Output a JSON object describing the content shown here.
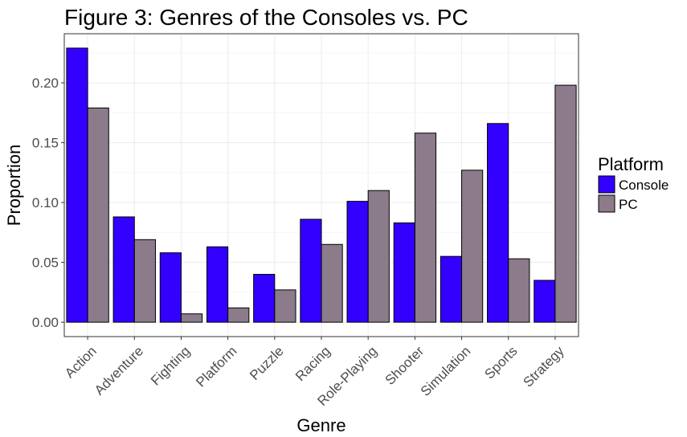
{
  "chart_data": {
    "type": "bar",
    "title": "Figure 3: Genres of the Consoles vs. PC",
    "xlabel": "Genre",
    "ylabel": "Proportion",
    "categories": [
      "Action",
      "Adventure",
      "Fighting",
      "Platform",
      "Puzzle",
      "Racing",
      "Role-Playing",
      "Shooter",
      "Simulation",
      "Sports",
      "Strategy"
    ],
    "series": [
      {
        "name": "Console",
        "color": "#3300ff",
        "values": [
          0.229,
          0.088,
          0.058,
          0.063,
          0.04,
          0.086,
          0.101,
          0.083,
          0.055,
          0.166,
          0.035
        ]
      },
      {
        "name": "PC",
        "color": "#8b7b8b",
        "values": [
          0.179,
          0.069,
          0.007,
          0.012,
          0.027,
          0.065,
          0.11,
          0.158,
          0.127,
          0.053,
          0.198
        ]
      }
    ],
    "yticks": [
      0.0,
      0.05,
      0.1,
      0.15,
      0.2
    ],
    "ytick_labels": [
      "0.00",
      "0.05",
      "0.10",
      "0.15",
      "0.20"
    ],
    "ylim": [
      -0.012,
      0.241
    ],
    "grid": true,
    "legend": {
      "title": "Platform",
      "position": "right"
    }
  }
}
